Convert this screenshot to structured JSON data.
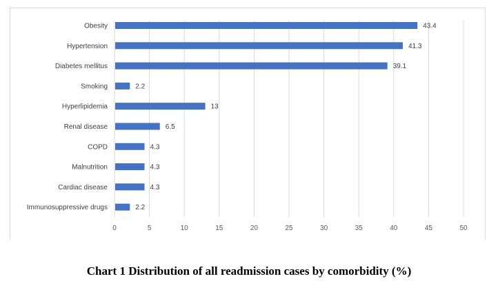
{
  "chart_data": {
    "type": "bar",
    "orientation": "horizontal",
    "title": "Chart 1 Distribution of all readmission cases by comorbidity (%)",
    "xlabel": "",
    "ylabel": "",
    "categories": [
      "Obesity",
      "Hypertension",
      "Diabetes mellitus",
      "Smoking",
      "Hyperlipidemia",
      "Renal disease",
      "COPD",
      "Malnutrition",
      "Cardiac disease",
      "Immunosuppressive drugs"
    ],
    "values": [
      43.4,
      41.3,
      39.1,
      2.2,
      13,
      6.5,
      4.3,
      4.3,
      4.3,
      2.2
    ],
    "value_labels": [
      "43.4",
      "41.3",
      "39.1",
      "2.2",
      "13",
      "6.5",
      "4.3",
      "4.3",
      "4.3",
      "2.2"
    ],
    "xlim": [
      0,
      50
    ],
    "xticks": [
      "0",
      "5",
      "10",
      "15",
      "20",
      "25",
      "30",
      "35",
      "40",
      "45",
      "50"
    ],
    "grid": true,
    "bar_color": "#4472c4"
  }
}
